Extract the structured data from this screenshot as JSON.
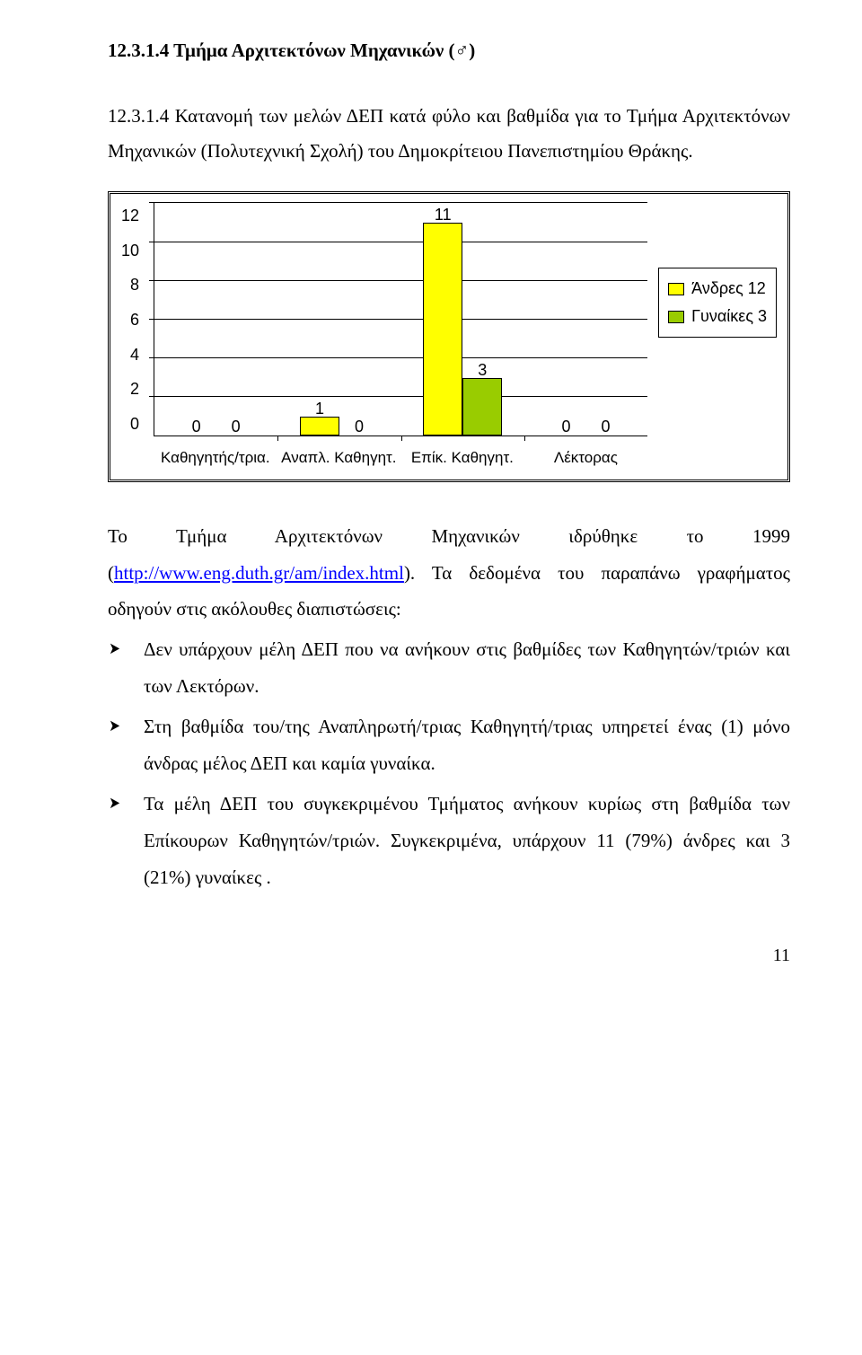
{
  "section_title": "12.3.1.4  Τμήμα Αρχιτεκτόνων Μηχανικών (♂)",
  "caption": "12.3.1.4 Κατανομή των μελών ΔΕΠ κατά φύλο και βαθμίδα για το Τμήμα Αρχιτεκτόνων Μηχανικών (Πολυτεχνική Σχολή) του Δημοκρίτειου Πανεπιστημίου Θράκης.",
  "chart": {
    "type": "bar",
    "ylim": [
      0,
      12
    ],
    "ytick_step": 2,
    "yticks": [
      "12",
      "10",
      "8",
      "6",
      "4",
      "2",
      "0"
    ],
    "categories": [
      "Καθηγητής/τρια.",
      "Αναπλ. Καθηγητ.",
      "Επίκ. Καθηγητ.",
      "Λέκτορας"
    ],
    "series": [
      {
        "name": "Άνδρες 12",
        "color": "#ffff00",
        "values": [
          0,
          1,
          11,
          0
        ]
      },
      {
        "name": "Γυναίκες 3",
        "color": "#99cc00",
        "values": [
          0,
          0,
          3,
          0
        ]
      }
    ],
    "background_color": "#ffffff",
    "bar_border": "#000000"
  },
  "body": {
    "lead_pre": "Το Τμήμα Αρχιτεκτόνων Μηχανικών ιδρύθηκε το 1999 (",
    "link_text": "http://www.eng.duth.gr/am/index.html",
    "lead_post": "). Τα δεδομένα του παραπάνω γραφήματος οδηγούν στις ακόλουθες διαπιστώσεις:",
    "bullets": [
      "Δεν υπάρχουν μέλη ΔΕΠ που να ανήκουν στις βαθμίδες των Καθηγητών/τριών και των Λεκτόρων.",
      "Στη βαθμίδα του/της Αναπληρωτή/τριας Καθηγητή/τριας υπηρετεί ένας (1) μόνο άνδρας μέλος ΔΕΠ και καμία γυναίκα.",
      "Τα μέλη ΔΕΠ του συγκεκριμένου Τμήματος ανήκουν κυρίως στη βαθμίδα των Επίκουρων Καθηγητών/τριών. Συγκεκριμένα, υπάρχουν 11 (79%) άνδρες και 3 (21%) γυναίκες ."
    ]
  },
  "page_number": "11"
}
